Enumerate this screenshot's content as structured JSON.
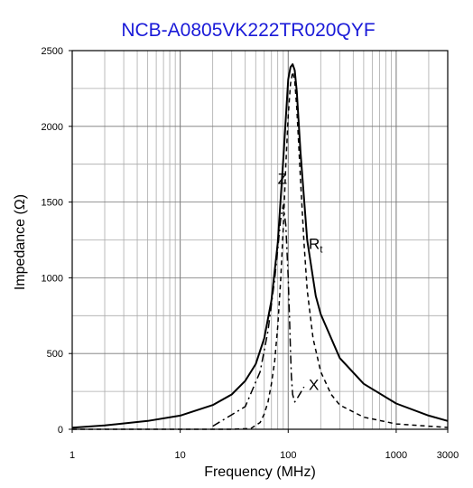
{
  "chart_data": {
    "type": "line",
    "title": "NCB-A0805VK222TR020QYF",
    "xlabel": "Frequency (MHz)",
    "ylabel": "Impedance (Ω)",
    "xscale": "log",
    "xlim": [
      1,
      3000
    ],
    "ylim": [
      0,
      2500
    ],
    "grid": true,
    "xticks": [
      {
        "value": 1,
        "label": "1"
      },
      {
        "value": 10,
        "label": "10"
      },
      {
        "value": 100,
        "label": "100"
      },
      {
        "value": 1000,
        "label": "1000"
      },
      {
        "value": 3000,
        "label": "3000"
      }
    ],
    "yticks": [
      {
        "value": 0,
        "label": "0"
      },
      {
        "value": 500,
        "label": "500"
      },
      {
        "value": 1000,
        "label": "1000"
      },
      {
        "value": 1500,
        "label": "1500"
      },
      {
        "value": 2000,
        "label": "2000"
      },
      {
        "value": 2500,
        "label": "2500"
      }
    ],
    "series": [
      {
        "name": "Z",
        "style": "solid",
        "x": [
          1,
          2,
          5,
          10,
          20,
          30,
          40,
          50,
          60,
          70,
          80,
          90,
          100,
          105,
          110,
          115,
          120,
          130,
          150,
          180,
          200,
          300,
          500,
          1000,
          2000,
          3000
        ],
        "y": [
          10,
          25,
          55,
          90,
          160,
          230,
          320,
          430,
          600,
          850,
          1230,
          1780,
          2310,
          2390,
          2410,
          2370,
          2230,
          1830,
          1250,
          880,
          760,
          470,
          300,
          170,
          90,
          55
        ]
      },
      {
        "name": "Rₜ",
        "style": "dashed",
        "x": [
          1,
          10,
          30,
          45,
          55,
          60,
          65,
          70,
          75,
          80,
          85,
          90,
          95,
          100,
          105,
          110,
          115,
          120,
          130,
          140,
          150,
          170,
          200,
          250,
          300,
          500,
          1000,
          2000,
          3000
        ],
        "y": [
          0,
          0,
          0,
          5,
          45,
          100,
          180,
          300,
          450,
          680,
          970,
          1330,
          1740,
          2070,
          2280,
          2360,
          2300,
          2120,
          1650,
          1230,
          920,
          600,
          380,
          230,
          160,
          80,
          35,
          20,
          12
        ]
      },
      {
        "name": "X",
        "style": "dashdot",
        "x": [
          20,
          40,
          55,
          65,
          75,
          80,
          85,
          90,
          95,
          100,
          103,
          105,
          107,
          110,
          115,
          120,
          130,
          140
        ],
        "y": [
          20,
          150,
          380,
          650,
          990,
          1190,
          1380,
          1480,
          1350,
          1000,
          720,
          520,
          350,
          230,
          180,
          200,
          240,
          280
        ]
      }
    ],
    "annotations": [
      {
        "text": "Z",
        "x": 80,
        "y": 1620
      },
      {
        "text": "R",
        "sub": "t",
        "x": 155,
        "y": 1190
      },
      {
        "text": "X",
        "x": 155,
        "y": 260
      }
    ]
  }
}
